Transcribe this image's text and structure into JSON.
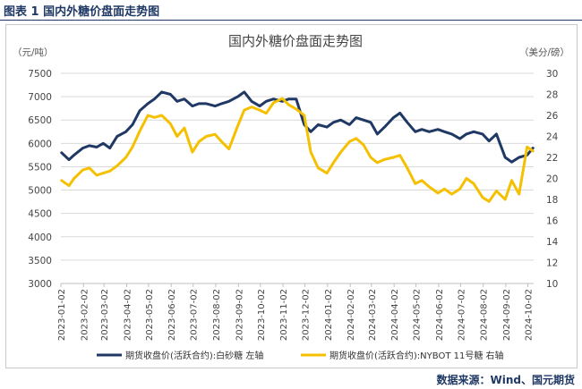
{
  "caption": "图表 1  国内外糖价盘面走势图",
  "source": "数据来源：Wind、国元期货",
  "colors": {
    "navy": "#1f3864",
    "gold": "#f5c000",
    "grid": "#d9d9d9"
  },
  "chart_data": {
    "type": "line",
    "title": "国内外糖价盘面走势图",
    "ylabel": "（元/吨）",
    "ylabel2": "（美分/磅）",
    "ylim": [
      3000,
      7500
    ],
    "y2lim": [
      10,
      30
    ],
    "yticks": [
      "7500",
      "7000",
      "6500",
      "6000",
      "5500",
      "5000",
      "4500",
      "4000",
      "3500",
      "3000"
    ],
    "y2ticks": [
      "30",
      "28",
      "26",
      "24",
      "22",
      "20",
      "18",
      "16",
      "14",
      "12",
      "10"
    ],
    "xticks": [
      "2023-01-02",
      "2023-02-02",
      "2023-03-02",
      "2023-04-02",
      "2023-05-02",
      "2023-06-02",
      "2023-07-02",
      "2023-08-02",
      "2023-09-02",
      "2023-10-02",
      "2023-11-02",
      "2023-12-02",
      "2024-01-02",
      "2024-02-02",
      "2024-03-02",
      "2024-04-02",
      "2024-05-02",
      "2024-06-02",
      "2024-07-02",
      "2024-08-02",
      "2024-09-02",
      "2024-10-02"
    ],
    "x_range": [
      "2023-01-02",
      "2024-10-10"
    ],
    "grid": "horizontal",
    "legend_position": "bottom",
    "series": [
      {
        "name": "期货收盘价(活跃合约):白砂糖  左轴",
        "axis": "left",
        "color": "#1f3864",
        "x": [
          "2023-01-03",
          "2023-01-13",
          "2023-01-20",
          "2023-02-01",
          "2023-02-10",
          "2023-02-20",
          "2023-03-01",
          "2023-03-10",
          "2023-03-20",
          "2023-04-01",
          "2023-04-10",
          "2023-04-20",
          "2023-05-01",
          "2023-05-10",
          "2023-05-20",
          "2023-06-01",
          "2023-06-10",
          "2023-06-20",
          "2023-07-01",
          "2023-07-10",
          "2023-07-20",
          "2023-08-01",
          "2023-08-10",
          "2023-08-20",
          "2023-09-01",
          "2023-09-10",
          "2023-09-20",
          "2023-10-01",
          "2023-10-10",
          "2023-10-20",
          "2023-11-01",
          "2023-11-10",
          "2023-11-20",
          "2023-12-01",
          "2023-12-10",
          "2023-12-20",
          "2024-01-01",
          "2024-01-10",
          "2024-01-20",
          "2024-02-01",
          "2024-02-10",
          "2024-02-20",
          "2024-03-01",
          "2024-03-10",
          "2024-03-20",
          "2024-04-01",
          "2024-04-10",
          "2024-04-20",
          "2024-05-01",
          "2024-05-10",
          "2024-05-20",
          "2024-06-01",
          "2024-06-10",
          "2024-06-20",
          "2024-07-01",
          "2024-07-10",
          "2024-07-20",
          "2024-08-01",
          "2024-08-10",
          "2024-08-20",
          "2024-09-01",
          "2024-09-10",
          "2024-09-20",
          "2024-10-01",
          "2024-10-09"
        ],
        "values": [
          5800,
          5650,
          5750,
          5900,
          5950,
          5920,
          6000,
          5900,
          6150,
          6250,
          6400,
          6700,
          6850,
          6950,
          7100,
          7050,
          6900,
          6950,
          6800,
          6850,
          6850,
          6800,
          6850,
          6900,
          7000,
          7100,
          6900,
          6800,
          6900,
          6950,
          6900,
          6950,
          6950,
          6400,
          6250,
          6400,
          6350,
          6450,
          6500,
          6400,
          6550,
          6500,
          6450,
          6200,
          6350,
          6550,
          6650,
          6450,
          6250,
          6300,
          6250,
          6300,
          6250,
          6200,
          6100,
          6200,
          6250,
          6200,
          6050,
          6200,
          5700,
          5600,
          5700,
          5750,
          5900
        ]
      },
      {
        "name": "期货收盘价(活跃合约):NYBOT 11号糖  右轴",
        "axis": "right",
        "color": "#f5c000",
        "x": [
          "2023-01-03",
          "2023-01-13",
          "2023-01-20",
          "2023-02-01",
          "2023-02-10",
          "2023-02-20",
          "2023-03-01",
          "2023-03-10",
          "2023-03-20",
          "2023-04-01",
          "2023-04-10",
          "2023-04-20",
          "2023-05-01",
          "2023-05-10",
          "2023-05-20",
          "2023-06-01",
          "2023-06-10",
          "2023-06-20",
          "2023-07-01",
          "2023-07-10",
          "2023-07-20",
          "2023-08-01",
          "2023-08-10",
          "2023-08-20",
          "2023-09-01",
          "2023-09-10",
          "2023-09-20",
          "2023-10-01",
          "2023-10-10",
          "2023-10-20",
          "2023-11-01",
          "2023-11-10",
          "2023-11-20",
          "2023-12-01",
          "2023-12-10",
          "2023-12-20",
          "2024-01-01",
          "2024-01-10",
          "2024-01-20",
          "2024-02-01",
          "2024-02-10",
          "2024-02-20",
          "2024-03-01",
          "2024-03-10",
          "2024-03-20",
          "2024-04-01",
          "2024-04-10",
          "2024-04-20",
          "2024-05-01",
          "2024-05-10",
          "2024-05-20",
          "2024-06-01",
          "2024-06-10",
          "2024-06-20",
          "2024-07-01",
          "2024-07-10",
          "2024-07-20",
          "2024-08-01",
          "2024-08-10",
          "2024-08-20",
          "2024-09-01",
          "2024-09-10",
          "2024-09-20",
          "2024-10-01",
          "2024-10-09"
        ],
        "values": [
          19.8,
          19.3,
          20.0,
          20.8,
          21.0,
          20.3,
          20.5,
          20.7,
          21.2,
          22.0,
          23.0,
          24.5,
          26.0,
          25.8,
          26.0,
          25.2,
          24.0,
          24.8,
          22.5,
          23.5,
          24.0,
          24.2,
          23.5,
          22.8,
          25.0,
          26.5,
          26.8,
          26.5,
          26.2,
          27.2,
          27.6,
          27.0,
          26.6,
          26.0,
          22.5,
          21.0,
          20.5,
          21.5,
          22.5,
          23.5,
          23.8,
          23.2,
          22.0,
          21.5,
          21.8,
          22.0,
          22.2,
          21.0,
          19.5,
          19.8,
          19.2,
          18.6,
          19.0,
          18.5,
          19.0,
          20.0,
          19.5,
          18.2,
          17.8,
          18.8,
          18.0,
          19.8,
          18.5,
          23.0,
          22.6
        ]
      }
    ]
  }
}
